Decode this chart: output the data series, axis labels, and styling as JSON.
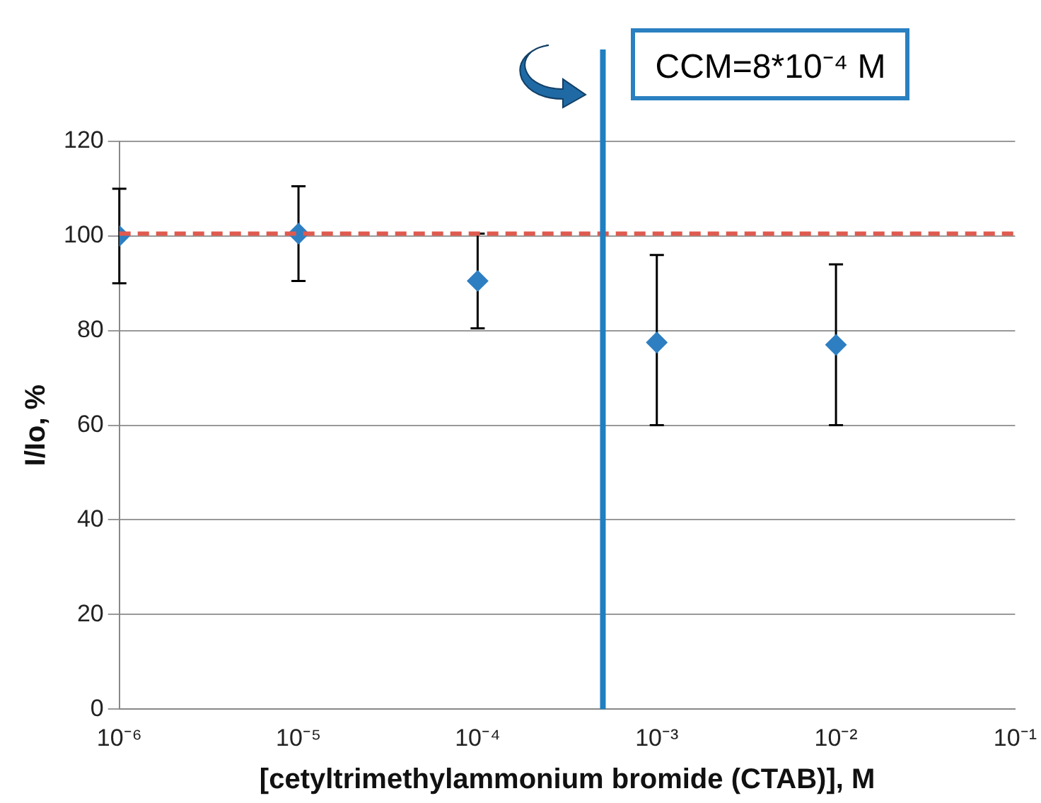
{
  "chart_data": {
    "type": "scatter",
    "xlabel": "[cetyltrimethylammonium bromide (CTAB)], M",
    "ylabel": "I/Io, %",
    "x": [
      1e-06,
      1e-05,
      0.0001,
      0.001,
      0.01
    ],
    "series": [
      {
        "color": "#2e7fc2",
        "values": [
          100,
          100.5,
          90.5,
          77.5,
          77
        ],
        "errors": [
          10,
          10,
          10,
          [
            60,
            96
          ],
          [
            60,
            94
          ]
        ]
      }
    ],
    "log": "x",
    "xlim": [
      1e-06,
      0.1
    ],
    "xticks": [
      {
        "value": 1e-06,
        "label": "10⁻⁶"
      },
      {
        "value": 1e-05,
        "label": "10⁻⁵"
      },
      {
        "value": 0.0001,
        "label": "10⁻⁴"
      },
      {
        "value": 0.001,
        "label": "10⁻³"
      },
      {
        "value": 0.01,
        "label": "10⁻²"
      },
      {
        "value": 0.1,
        "label": "10⁻¹"
      }
    ],
    "ylim": [
      0,
      120
    ],
    "yticks": [
      0,
      20,
      40,
      60,
      80,
      100,
      120
    ],
    "grid": "y",
    "legend": false,
    "marker": "diamond",
    "ref_lines": [
      {
        "axis": "y",
        "value": 100.5,
        "color": "#e05a4f",
        "line_style": "dashed"
      },
      {
        "axis": "x",
        "value": 0.0005,
        "color": "#1f7fc0",
        "line_style": "solid"
      }
    ],
    "annotations": [
      "CCM=8*10⁻⁴ M"
    ]
  }
}
